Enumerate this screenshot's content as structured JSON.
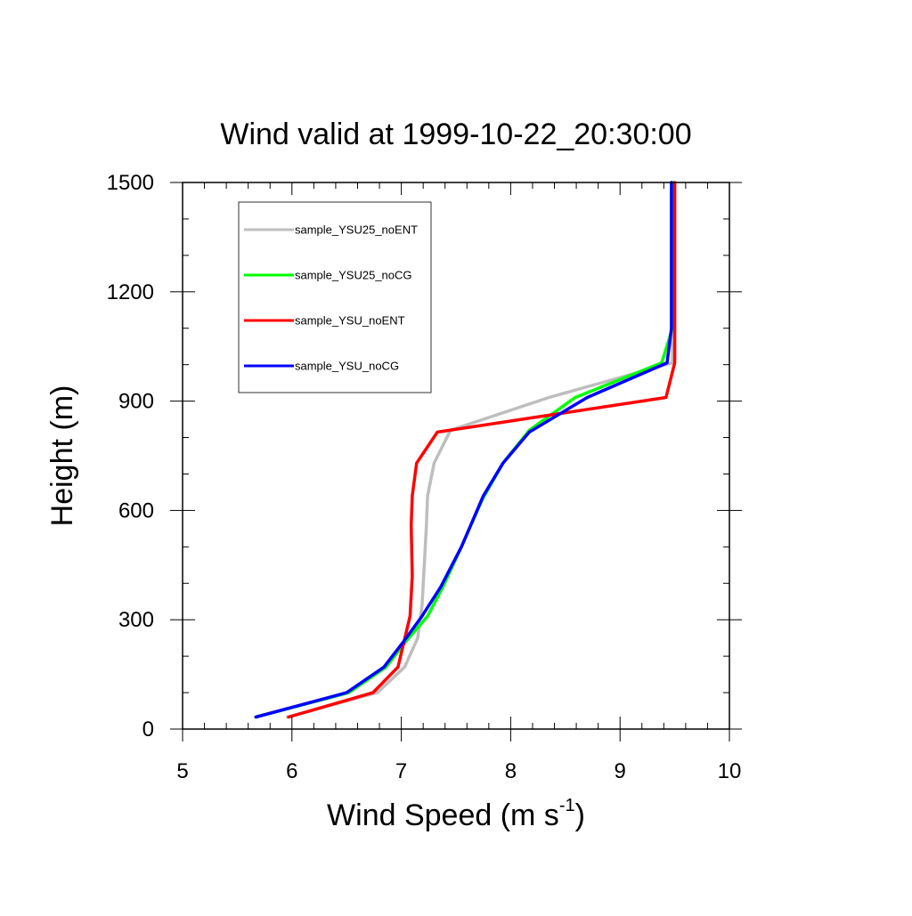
{
  "chart_data": {
    "type": "line",
    "title": "Wind valid at 1999-10-22_20:30:00",
    "xlabel": {
      "base": "Wind Speed (m s",
      "sup": "-1",
      "close": ")"
    },
    "ylabel": "Height (m)",
    "xlim": [
      5,
      10
    ],
    "ylim": [
      0,
      1500
    ],
    "x_ticks": [
      "5",
      "6",
      "7",
      "8",
      "9",
      "10"
    ],
    "y_ticks": [
      "0",
      "300",
      "600",
      "900",
      "1200",
      "1500"
    ],
    "grid": false,
    "legend_position": "top-left",
    "series": [
      {
        "name": "sample_YSU25_noENT",
        "color": "#bebebe",
        "points": [
          [
            5.96,
            33
          ],
          [
            6.78,
            100
          ],
          [
            7.03,
            170
          ],
          [
            7.15,
            250
          ],
          [
            7.19,
            340
          ],
          [
            7.21,
            450
          ],
          [
            7.23,
            560
          ],
          [
            7.24,
            640
          ],
          [
            7.3,
            730
          ],
          [
            7.45,
            820
          ],
          [
            8.35,
            910
          ],
          [
            9.48,
            1005
          ],
          [
            9.48,
            1100
          ],
          [
            9.48,
            1200
          ],
          [
            9.48,
            1300
          ],
          [
            9.48,
            1500
          ]
        ]
      },
      {
        "name": "sample_YSU25_noCG",
        "color": "#00ff00",
        "points": [
          [
            5.67,
            33
          ],
          [
            6.52,
            100
          ],
          [
            6.86,
            170
          ],
          [
            7.04,
            240
          ],
          [
            7.24,
            310
          ],
          [
            7.38,
            390
          ],
          [
            7.55,
            500
          ],
          [
            7.74,
            630
          ],
          [
            7.93,
            730
          ],
          [
            8.17,
            820
          ],
          [
            8.59,
            910
          ],
          [
            9.38,
            1005
          ],
          [
            9.48,
            1100
          ],
          [
            9.48,
            1200
          ],
          [
            9.48,
            1300
          ],
          [
            9.48,
            1500
          ]
        ]
      },
      {
        "name": "sample_YSU_noENT",
        "color": "#ff0000",
        "points": [
          [
            5.97,
            33
          ],
          [
            6.74,
            100
          ],
          [
            6.97,
            170
          ],
          [
            7.08,
            310
          ],
          [
            7.1,
            420
          ],
          [
            7.09,
            560
          ],
          [
            7.1,
            640
          ],
          [
            7.14,
            730
          ],
          [
            7.33,
            815
          ],
          [
            9.42,
            910
          ],
          [
            9.5,
            1005
          ],
          [
            9.5,
            1100
          ],
          [
            9.5,
            1200
          ],
          [
            9.5,
            1300
          ],
          [
            9.5,
            1500
          ]
        ]
      },
      {
        "name": "sample_YSU_noCG",
        "color": "#0000ff",
        "points": [
          [
            5.67,
            33
          ],
          [
            6.5,
            100
          ],
          [
            6.84,
            170
          ],
          [
            7.02,
            240
          ],
          [
            7.19,
            310
          ],
          [
            7.36,
            390
          ],
          [
            7.55,
            500
          ],
          [
            7.75,
            640
          ],
          [
            7.93,
            730
          ],
          [
            8.17,
            815
          ],
          [
            8.7,
            910
          ],
          [
            9.43,
            1005
          ],
          [
            9.47,
            1100
          ],
          [
            9.47,
            1200
          ],
          [
            9.47,
            1300
          ],
          [
            9.47,
            1500
          ]
        ]
      }
    ]
  }
}
